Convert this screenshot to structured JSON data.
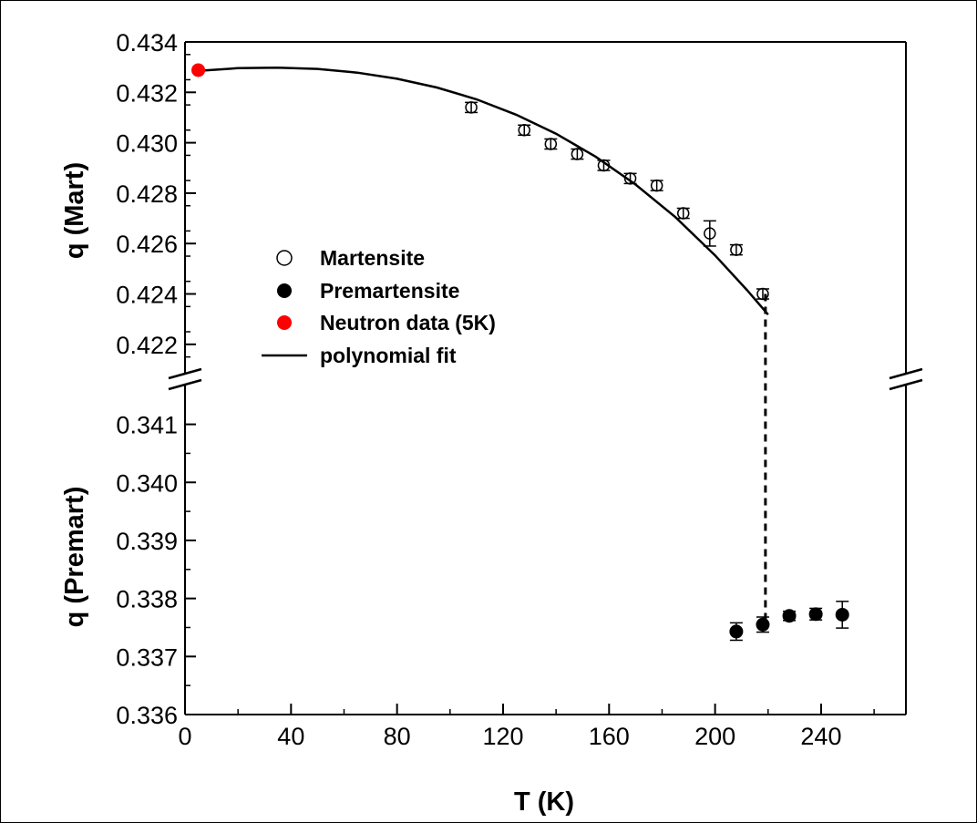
{
  "chart_data": {
    "type": "scatter",
    "title": "",
    "xlabel": "T (K)",
    "ylabel_upper": "q (Mart)",
    "ylabel_lower": "q (Premart)",
    "xlim": [
      0,
      272
    ],
    "xticks": [
      "0",
      "40",
      "80",
      "120",
      "160",
      "200",
      "240"
    ],
    "upper_panel": {
      "ylim": [
        0.4208,
        0.434
      ],
      "yticks": [
        "0.434",
        "0.432",
        "0.430",
        "0.428",
        "0.426",
        "0.424",
        "0.422"
      ]
    },
    "lower_panel": {
      "ylim": [
        0.336,
        0.3417
      ],
      "yticks": [
        "0.341",
        "0.340",
        "0.339",
        "0.338",
        "0.337",
        "0.336"
      ]
    },
    "axis_break": true,
    "grid": false,
    "legend_position": "center-left",
    "series": [
      {
        "name": "Martensite",
        "marker": "open-circle",
        "color": "#000000",
        "points": [
          {
            "x": 108,
            "y": 0.4314,
            "err": 0.0002
          },
          {
            "x": 128,
            "y": 0.4305,
            "err": 0.0002
          },
          {
            "x": 138,
            "y": 0.42995,
            "err": 0.0002
          },
          {
            "x": 148,
            "y": 0.42955,
            "err": 0.0002
          },
          {
            "x": 158,
            "y": 0.4291,
            "err": 0.0002
          },
          {
            "x": 168,
            "y": 0.42858,
            "err": 0.0002
          },
          {
            "x": 178,
            "y": 0.4283,
            "err": 0.0002
          },
          {
            "x": 188,
            "y": 0.4272,
            "err": 0.0002
          },
          {
            "x": 198,
            "y": 0.4264,
            "err": 0.0005
          },
          {
            "x": 208,
            "y": 0.42575,
            "err": 0.0002
          },
          {
            "x": 218,
            "y": 0.424,
            "err": 0.0002
          }
        ]
      },
      {
        "name": "Premartensite",
        "marker": "filled-circle",
        "color": "#000000",
        "points": [
          {
            "x": 208,
            "y": 0.33743,
            "err": 0.00015
          },
          {
            "x": 218,
            "y": 0.33755,
            "err": 0.00013
          },
          {
            "x": 228,
            "y": 0.3377,
            "err": 8e-05
          },
          {
            "x": 238,
            "y": 0.33773,
            "err": 0.0001
          },
          {
            "x": 248,
            "y": 0.33772,
            "err": 0.00023
          }
        ]
      },
      {
        "name": "Neutron data (5K)",
        "marker": "filled-circle",
        "color": "#ff0000",
        "points": [
          {
            "x": 5,
            "y": 0.43288,
            "err": 0
          }
        ]
      },
      {
        "name": "polynomial fit",
        "marker": "line",
        "color": "#000000",
        "x": [
          5,
          20,
          35,
          50,
          65,
          80,
          95,
          110,
          125,
          140,
          155,
          170,
          185,
          200,
          212,
          220
        ],
        "y": [
          0.43285,
          0.43296,
          0.43298,
          0.43293,
          0.43278,
          0.43254,
          0.43219,
          0.43172,
          0.43111,
          0.43036,
          0.42944,
          0.42834,
          0.42705,
          0.42553,
          0.42416,
          0.42318
        ]
      }
    ],
    "transition_line": {
      "x": 219,
      "from_y": 0.424,
      "to_y": 0.33755,
      "style": "dashed"
    }
  }
}
